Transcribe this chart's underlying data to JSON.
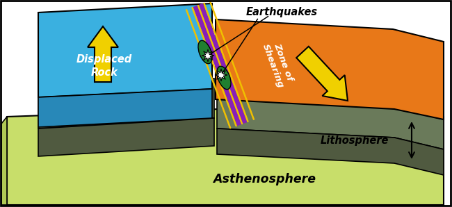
{
  "bg": "#ffffff",
  "c_asth_top": "#c8de6a",
  "c_asth_side_left": "#b0c855",
  "c_asth_front": "#d0e878",
  "c_lith_top": "#6a7a5a",
  "c_lith_front": "#505a40",
  "c_blue_top": "#3ab0e0",
  "c_blue_front": "#2888b8",
  "c_orange_top": "#e87818",
  "c_orange_right": "#c86010",
  "c_fault": "#8820b8",
  "c_fault_line": "#f0c000",
  "c_green": "#208030",
  "c_arrow": "#f0d000",
  "c_arrow_edge": "#000000",
  "c_star": "#ffffff",
  "c_border": "#000000",
  "label_eq": "Earthquakes",
  "label_dr": "Displaced\nRock",
  "label_zs": "Zone of\nShearing",
  "label_li": "Lithosphere",
  "label_as": "Asthenosphere"
}
